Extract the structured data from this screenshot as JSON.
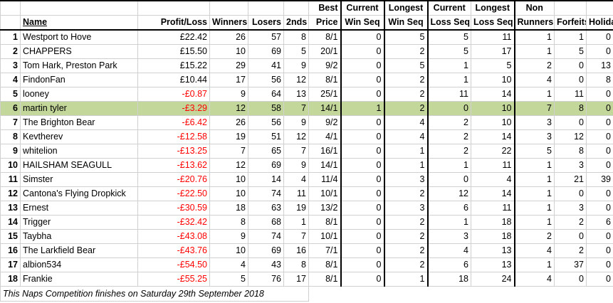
{
  "headers": {
    "name": "Name",
    "profit": "Profit/Loss",
    "winners": "Winners",
    "losers": "Losers",
    "seconds": "2nds",
    "best_top": "Best",
    "best_bottom": "Price",
    "cur_win_top": "Current",
    "cur_win_bottom": "Win Seq",
    "long_win_top": "Longest",
    "long_win_bottom": "Win Seq",
    "cur_loss_top": "Current",
    "cur_loss_bottom": "Loss Seq",
    "long_loss_top": "Longest",
    "long_loss_bottom": "Loss Seq",
    "non_top": "Non",
    "non_bottom": "Runners",
    "forfeits": "Forfeits",
    "holiday": "Holiday"
  },
  "rows": [
    {
      "rank": "1",
      "name": "Westport to Hove",
      "profit": "£22.42",
      "winners": "26",
      "losers": "57",
      "seconds": "8",
      "best": "8/1",
      "cur_win": "0",
      "long_win": "5",
      "cur_loss": "5",
      "long_loss": "11",
      "non": "1",
      "forfeits": "1",
      "holiday": "0",
      "neg": false
    },
    {
      "rank": "2",
      "name": "CHAPPERS",
      "profit": "£15.50",
      "winners": "10",
      "losers": "69",
      "seconds": "5",
      "best": "20/1",
      "cur_win": "0",
      "long_win": "2",
      "cur_loss": "5",
      "long_loss": "17",
      "non": "1",
      "forfeits": "5",
      "holiday": "0",
      "neg": false
    },
    {
      "rank": "3",
      "name": "Tom Hark, Preston Park",
      "profit": "£15.22",
      "winners": "29",
      "losers": "41",
      "seconds": "9",
      "best": "9/2",
      "cur_win": "0",
      "long_win": "5",
      "cur_loss": "1",
      "long_loss": "5",
      "non": "2",
      "forfeits": "0",
      "holiday": "13",
      "neg": false
    },
    {
      "rank": "4",
      "name": "FindonFan",
      "profit": "£10.44",
      "winners": "17",
      "losers": "56",
      "seconds": "12",
      "best": "8/1",
      "cur_win": "0",
      "long_win": "2",
      "cur_loss": "1",
      "long_loss": "10",
      "non": "4",
      "forfeits": "0",
      "holiday": "8",
      "neg": false
    },
    {
      "rank": "5",
      "name": "looney",
      "profit": "-£0.87",
      "winners": "9",
      "losers": "64",
      "seconds": "13",
      "best": "25/1",
      "cur_win": "0",
      "long_win": "2",
      "cur_loss": "11",
      "long_loss": "14",
      "non": "1",
      "forfeits": "11",
      "holiday": "0",
      "neg": true
    },
    {
      "rank": "6",
      "name": "martin tyler",
      "profit": "-£3.29",
      "winners": "12",
      "losers": "58",
      "seconds": "7",
      "best": "14/1",
      "cur_win": "1",
      "long_win": "2",
      "cur_loss": "0",
      "long_loss": "10",
      "non": "7",
      "forfeits": "8",
      "holiday": "0",
      "neg": true,
      "highlight": true
    },
    {
      "rank": "7",
      "name": "The Brighton Bear",
      "profit": "-£6.42",
      "winners": "26",
      "losers": "56",
      "seconds": "9",
      "best": "9/2",
      "cur_win": "0",
      "long_win": "4",
      "cur_loss": "2",
      "long_loss": "10",
      "non": "3",
      "forfeits": "0",
      "holiday": "0",
      "neg": true
    },
    {
      "rank": "8",
      "name": "Kevtherev",
      "profit": "-£12.58",
      "winners": "19",
      "losers": "51",
      "seconds": "12",
      "best": "4/1",
      "cur_win": "0",
      "long_win": "4",
      "cur_loss": "2",
      "long_loss": "14",
      "non": "3",
      "forfeits": "12",
      "holiday": "0",
      "neg": true
    },
    {
      "rank": "9",
      "name": "whitelion",
      "profit": "-£13.25",
      "winners": "7",
      "losers": "65",
      "seconds": "7",
      "best": "16/1",
      "cur_win": "0",
      "long_win": "1",
      "cur_loss": "2",
      "long_loss": "22",
      "non": "5",
      "forfeits": "8",
      "holiday": "0",
      "neg": true
    },
    {
      "rank": "10",
      "name": "HAILSHAM SEAGULL",
      "profit": "-£13.62",
      "winners": "12",
      "losers": "69",
      "seconds": "9",
      "best": "14/1",
      "cur_win": "0",
      "long_win": "1",
      "cur_loss": "1",
      "long_loss": "11",
      "non": "1",
      "forfeits": "3",
      "holiday": "0",
      "neg": true
    },
    {
      "rank": "11",
      "name": "Simster",
      "profit": "-£20.76",
      "winners": "10",
      "losers": "14",
      "seconds": "4",
      "best": "11/4",
      "cur_win": "0",
      "long_win": "3",
      "cur_loss": "0",
      "long_loss": "4",
      "non": "1",
      "forfeits": "21",
      "holiday": "39",
      "neg": true
    },
    {
      "rank": "12",
      "name": "Cantona's Flying Dropkick",
      "profit": "-£22.50",
      "winners": "10",
      "losers": "74",
      "seconds": "11",
      "best": "10/1",
      "cur_win": "0",
      "long_win": "2",
      "cur_loss": "12",
      "long_loss": "14",
      "non": "1",
      "forfeits": "0",
      "holiday": "0",
      "neg": true
    },
    {
      "rank": "13",
      "name": "Ernest",
      "profit": "-£30.59",
      "winners": "18",
      "losers": "63",
      "seconds": "19",
      "best": "13/2",
      "cur_win": "0",
      "long_win": "3",
      "cur_loss": "6",
      "long_loss": "11",
      "non": "1",
      "forfeits": "3",
      "holiday": "0",
      "neg": true
    },
    {
      "rank": "14",
      "name": "Trigger",
      "profit": "-£32.42",
      "winners": "8",
      "losers": "68",
      "seconds": "1",
      "best": "8/1",
      "cur_win": "0",
      "long_win": "2",
      "cur_loss": "1",
      "long_loss": "18",
      "non": "1",
      "forfeits": "2",
      "holiday": "6",
      "neg": true
    },
    {
      "rank": "15",
      "name": "Taybha",
      "profit": "-£43.08",
      "winners": "9",
      "losers": "74",
      "seconds": "7",
      "best": "10/1",
      "cur_win": "0",
      "long_win": "2",
      "cur_loss": "3",
      "long_loss": "18",
      "non": "2",
      "forfeits": "0",
      "holiday": "0",
      "neg": true
    },
    {
      "rank": "16",
      "name": "The Larkfield Bear",
      "profit": "-£43.76",
      "winners": "10",
      "losers": "69",
      "seconds": "16",
      "best": "7/1",
      "cur_win": "0",
      "long_win": "2",
      "cur_loss": "4",
      "long_loss": "13",
      "non": "4",
      "forfeits": "2",
      "holiday": "0",
      "neg": true
    },
    {
      "rank": "17",
      "name": "albion534",
      "profit": "-£54.50",
      "winners": "4",
      "losers": "43",
      "seconds": "8",
      "best": "8/1",
      "cur_win": "0",
      "long_win": "2",
      "cur_loss": "6",
      "long_loss": "13",
      "non": "1",
      "forfeits": "37",
      "holiday": "0",
      "neg": true
    },
    {
      "rank": "18",
      "name": "Frankie",
      "profit": "-£55.25",
      "winners": "5",
      "losers": "76",
      "seconds": "17",
      "best": "8/1",
      "cur_win": "0",
      "long_win": "1",
      "cur_loss": "18",
      "long_loss": "24",
      "non": "4",
      "forfeits": "0",
      "holiday": "0",
      "neg": true
    }
  ],
  "footer": "This Naps Competition finishes on Saturday 29th September 2018",
  "colors": {
    "highlight": "#c4d79b",
    "negative": "#ff0000"
  }
}
